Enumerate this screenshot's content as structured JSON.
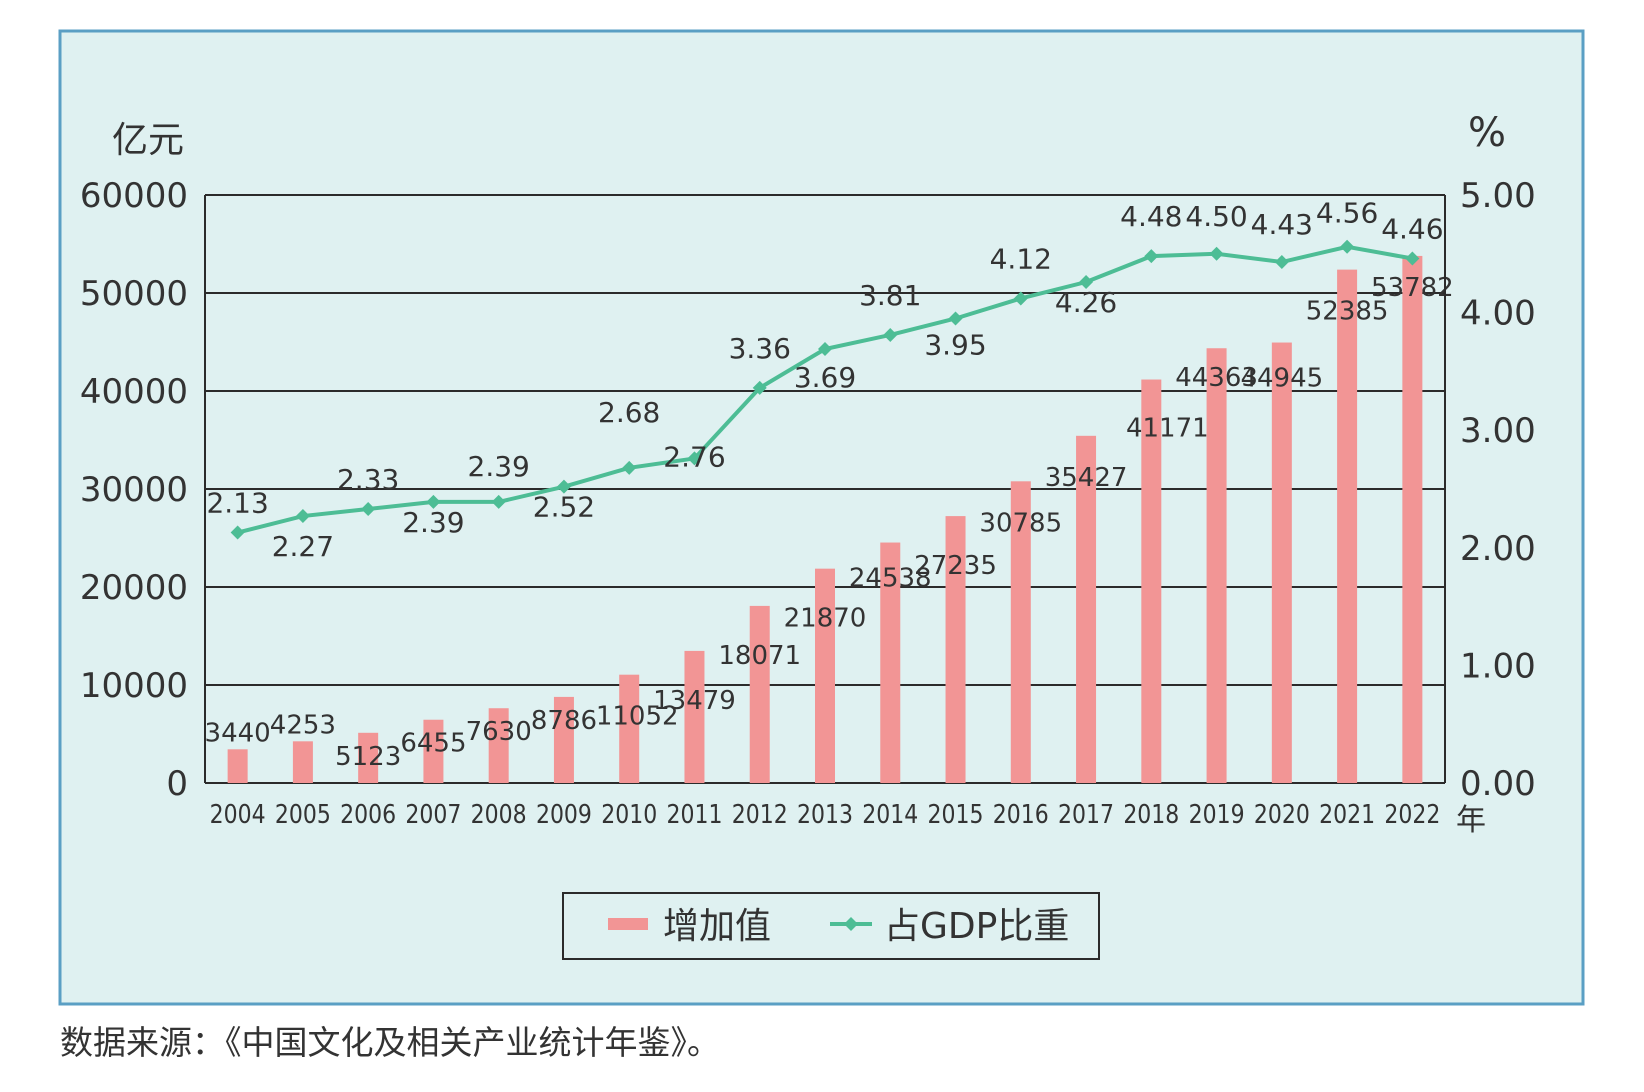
{
  "colors": {
    "panel_bg": "#dff1f1",
    "panel_border": "#5a9fc4",
    "bar": "#f29595",
    "line": "#4dbd95",
    "gridline": "#2b2b2b",
    "text": "#333333"
  },
  "chart_data": {
    "type": "bar",
    "categories": [
      "2004",
      "2005",
      "2006",
      "2007",
      "2008",
      "2009",
      "2010",
      "2011",
      "2012",
      "2013",
      "2014",
      "2015",
      "2016",
      "2017",
      "2018",
      "2019",
      "2020",
      "2021",
      "2022"
    ],
    "series": [
      {
        "name": "增加值",
        "type": "bar",
        "axis": "left",
        "values": [
          3440,
          4253,
          5123,
          6455,
          7630,
          8786,
          11052,
          13479,
          18071,
          21870,
          24538,
          27235,
          30785,
          35427,
          41171,
          44363,
          44945,
          52385,
          53782
        ]
      },
      {
        "name": "占GDP比重",
        "type": "line",
        "axis": "right",
        "values": [
          2.13,
          2.27,
          2.33,
          2.39,
          2.39,
          2.52,
          2.68,
          2.76,
          3.36,
          3.69,
          3.81,
          3.95,
          4.12,
          4.26,
          4.48,
          4.5,
          4.43,
          4.56,
          4.46
        ]
      }
    ],
    "bar_value_labels": [
      "3440",
      "4253",
      "5123",
      "6455",
      "7630",
      "8786",
      "11052",
      "13479",
      "18071",
      "21870",
      "24538",
      "27235",
      "30785",
      "35427",
      "41171",
      "44363",
      "44945",
      "52385",
      "53782"
    ],
    "line_value_labels": [
      "2.13",
      "2.27",
      "2.33",
      "2.39",
      "2.39",
      "2.52",
      "2.68",
      "2.76",
      "3.36",
      "3.69",
      "3.81",
      "3.95",
      "4.12",
      "4.26",
      "4.48",
      "4.50",
      "4.43",
      "4.56",
      "4.46"
    ],
    "y_left": {
      "unit": "亿元",
      "ylim": [
        0,
        60000
      ],
      "ticks": [
        "0",
        "10000",
        "20000",
        "30000",
        "40000",
        "50000",
        "60000"
      ]
    },
    "y_right": {
      "unit": "%",
      "ylim": [
        0,
        5
      ],
      "ticks": [
        "0.00",
        "1.00",
        "2.00",
        "3.00",
        "4.00",
        "5.00"
      ]
    },
    "x_unit": "年",
    "grid": true,
    "legend": {
      "position": "bottom-center",
      "entries": [
        "增加值",
        "占GDP比重"
      ]
    }
  },
  "source_note": "数据来源：《中国文化及相关产业统计年鉴》。"
}
